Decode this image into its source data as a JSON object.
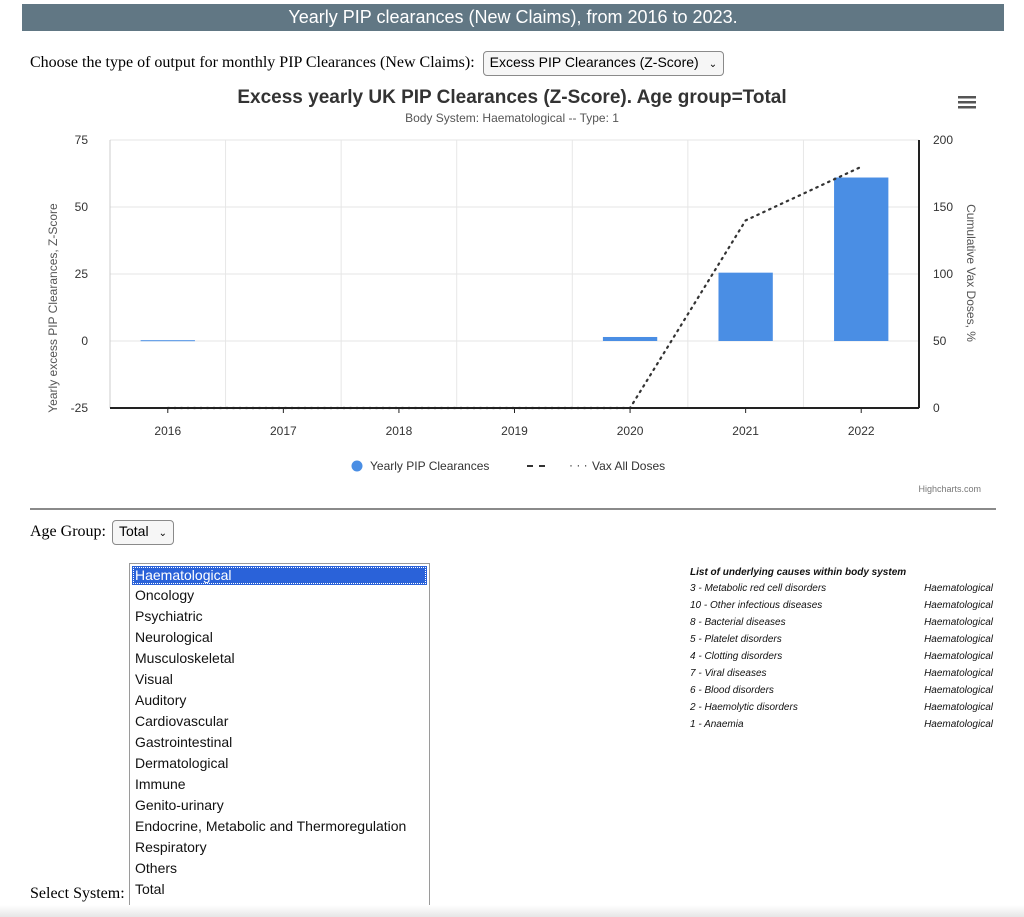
{
  "page_title": "Yearly PIP clearances (New Claims), from 2016 to 2023.",
  "output_selector": {
    "label": "Choose the type of output for monthly PIP Clearances (New Claims):",
    "value": "Excess PIP Clearances (Z-Score)"
  },
  "chart_data": {
    "type": "bar",
    "title": "Excess yearly UK PIP Clearances (Z-Score). Age group=Total",
    "subtitle": "Body System: Haematological -- Type: 1",
    "categories": [
      "2016",
      "2017",
      "2018",
      "2019",
      "2020",
      "2021",
      "2022"
    ],
    "series": [
      {
        "name": "Yearly PIP Clearances",
        "type": "bar",
        "axis": "left",
        "color": "#4a8ee4",
        "values": [
          0.3,
          0,
          0,
          0,
          1.5,
          25.5,
          61
        ]
      },
      {
        "name": "Vax All Doses",
        "type": "line",
        "style": "dotted",
        "axis": "right",
        "color": "#333333",
        "values": [
          0,
          0,
          0,
          0,
          0,
          140,
          180
        ]
      }
    ],
    "ylabel": "Yearly excess PIP Clearances, Z-Score",
    "ylim": [
      -25,
      75
    ],
    "yticks": [
      "75",
      "50",
      "25",
      "0",
      "-25"
    ],
    "y2label": "Cumulative Vax Doses, %",
    "y2lim": [
      0,
      200
    ],
    "y2ticks": [
      "200",
      "150",
      "100",
      "50",
      "0"
    ],
    "grid": true,
    "legend_position": "bottom-center",
    "menu_icon": "hamburger-icon",
    "credit": "Highcharts.com"
  },
  "age_group": {
    "label": "Age Group:",
    "value": "Total"
  },
  "systems": {
    "label": "Select System:",
    "selected": "Haematological",
    "options": [
      "Haematological",
      "Oncology",
      "Psychiatric",
      "Neurological",
      "Musculoskeletal",
      "Visual",
      "Auditory",
      "Cardiovascular",
      "Gastrointestinal",
      "Dermatological",
      "Immune",
      "Genito-urinary",
      "Endocrine, Metabolic and Thermoregulation",
      "Respiratory",
      "Others",
      "Total"
    ]
  },
  "causes": {
    "title": "List of underlying causes within body system",
    "rows": [
      {
        "cause": "3 - Metabolic red cell disorders",
        "system": "Haematological"
      },
      {
        "cause": "10 - Other infectious diseases",
        "system": "Haematological"
      },
      {
        "cause": "8 - Bacterial diseases",
        "system": "Haematological"
      },
      {
        "cause": "5 - Platelet disorders",
        "system": "Haematological"
      },
      {
        "cause": "4 - Clotting disorders",
        "system": "Haematological"
      },
      {
        "cause": "7 - Viral diseases",
        "system": "Haematological"
      },
      {
        "cause": "6 - Blood disorders",
        "system": "Haematological"
      },
      {
        "cause": "2 - Haemolytic disorders",
        "system": "Haematological"
      },
      {
        "cause": "1 - Anaemia",
        "system": "Haematological"
      }
    ]
  },
  "colors": {
    "banner": "#617784",
    "bar": "#4a8ee4",
    "selected_option": "#2a62d9"
  }
}
